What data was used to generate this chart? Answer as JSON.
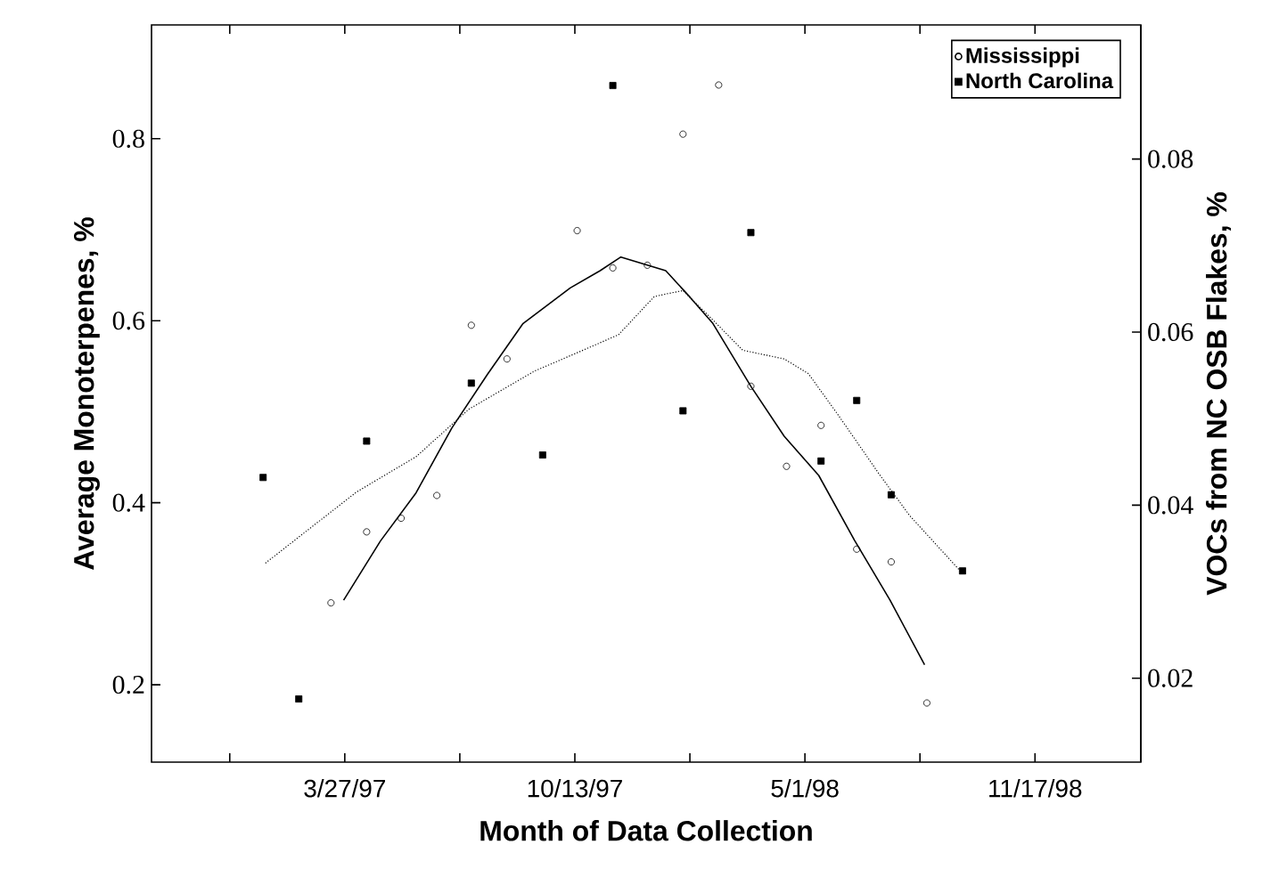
{
  "chart_data": {
    "type": "scatter",
    "xlabel": "Month of Data Collection",
    "ylabel": "Average Monoterpenes, %",
    "y2label": "VOCs from NC OSB Flakes, %",
    "xlim": [
      "1996-10-10",
      "1999-02-17"
    ],
    "xticks": [
      {
        "value": "1996-12-17",
        "label": null
      },
      {
        "value": "1997-03-27",
        "label": "3/27/97"
      },
      {
        "value": "1997-07-05",
        "label": null
      },
      {
        "value": "1997-10-13",
        "label": "10/13/97"
      },
      {
        "value": "1998-01-21",
        "label": null
      },
      {
        "value": "1998-05-01",
        "label": "5/1/98"
      },
      {
        "value": "1998-08-09",
        "label": null
      },
      {
        "value": "1998-11-17",
        "label": "11/17/98"
      }
    ],
    "ylim": [
      0.115,
      0.925
    ],
    "yticks": [
      0.2,
      0.4,
      0.6,
      0.8
    ],
    "y2lim": [
      0.0103,
      0.0955
    ],
    "y2ticks": [
      0.02,
      0.04,
      0.06,
      0.08
    ],
    "legend": "top right",
    "grid": false,
    "series": [
      {
        "name": "Mississippi",
        "marker": "circle",
        "color": "#000000",
        "x": [
          "1997-03-15",
          "1997-04-15",
          "1997-05-15",
          "1997-06-15",
          "1997-07-15",
          "1997-08-15",
          "1997-10-15",
          "1997-11-15",
          "1997-12-15",
          "1998-01-15",
          "1998-02-15",
          "1998-03-15",
          "1998-04-15",
          "1998-05-15",
          "1998-06-15",
          "1998-07-15",
          "1998-08-15"
        ],
        "values": [
          0.29,
          0.368,
          0.383,
          0.408,
          0.595,
          0.558,
          0.699,
          0.658,
          0.661,
          0.805,
          0.859,
          0.528,
          0.44,
          0.485,
          0.349,
          0.335,
          0.18
        ]
      },
      {
        "name": "North Carolina",
        "marker": "square",
        "axis": "y2",
        "color": "#000000",
        "x": [
          "1997-01-15",
          "1997-02-15",
          "1997-04-15",
          "1997-07-15",
          "1997-09-15",
          "1997-11-15",
          "1998-01-15",
          "1998-03-15",
          "1998-05-15",
          "1998-06-15",
          "1998-07-15",
          "1998-09-15"
        ],
        "values": [
          0.0432,
          0.0176,
          0.0474,
          0.0541,
          0.0458,
          0.0885,
          0.0509,
          0.0715,
          0.0451,
          0.0521,
          0.0412,
          0.0324
        ]
      },
      {
        "type": "line",
        "line_style": "solid",
        "marker": "none",
        "color": "#000000",
        "x": [
          "1997-03-26",
          "1997-04-27",
          "1997-05-28",
          "1997-06-28",
          "1997-07-29",
          "1997-08-29",
          "1997-10-09",
          "1997-11-04",
          "1997-11-22",
          "1997-12-31",
          "1998-01-21",
          "1998-02-10",
          "1998-03-15",
          "1998-04-13",
          "1998-05-13",
          "1998-06-13",
          "1998-07-14",
          "1998-08-13"
        ],
        "values": [
          0.293,
          0.358,
          0.411,
          0.482,
          0.541,
          0.597,
          0.636,
          0.655,
          0.67,
          0.655,
          0.626,
          0.597,
          0.528,
          0.473,
          0.43,
          0.359,
          0.293,
          0.222
        ]
      },
      {
        "type": "line",
        "line_style": "dotted",
        "marker": "none",
        "axis": "y2",
        "color": "#000000",
        "x": [
          "1997-01-17",
          "1997-04-06",
          "1997-05-28",
          "1997-07-13",
          "1997-09-08",
          "1997-10-20",
          "1997-11-20",
          "1997-12-21",
          "1997-12-31",
          "1998-01-15",
          "1998-02-10",
          "1998-03-08",
          "1998-04-13",
          "1998-05-04",
          "1998-05-30",
          "1998-07-05",
          "1998-07-31",
          "1998-09-13"
        ],
        "values": [
          0.0333,
          0.0415,
          0.0456,
          0.0511,
          0.0555,
          0.0579,
          0.0597,
          0.0641,
          0.0644,
          0.0648,
          0.0614,
          0.0579,
          0.0569,
          0.0552,
          0.0504,
          0.0435,
          0.0388,
          0.0324
        ]
      }
    ]
  }
}
